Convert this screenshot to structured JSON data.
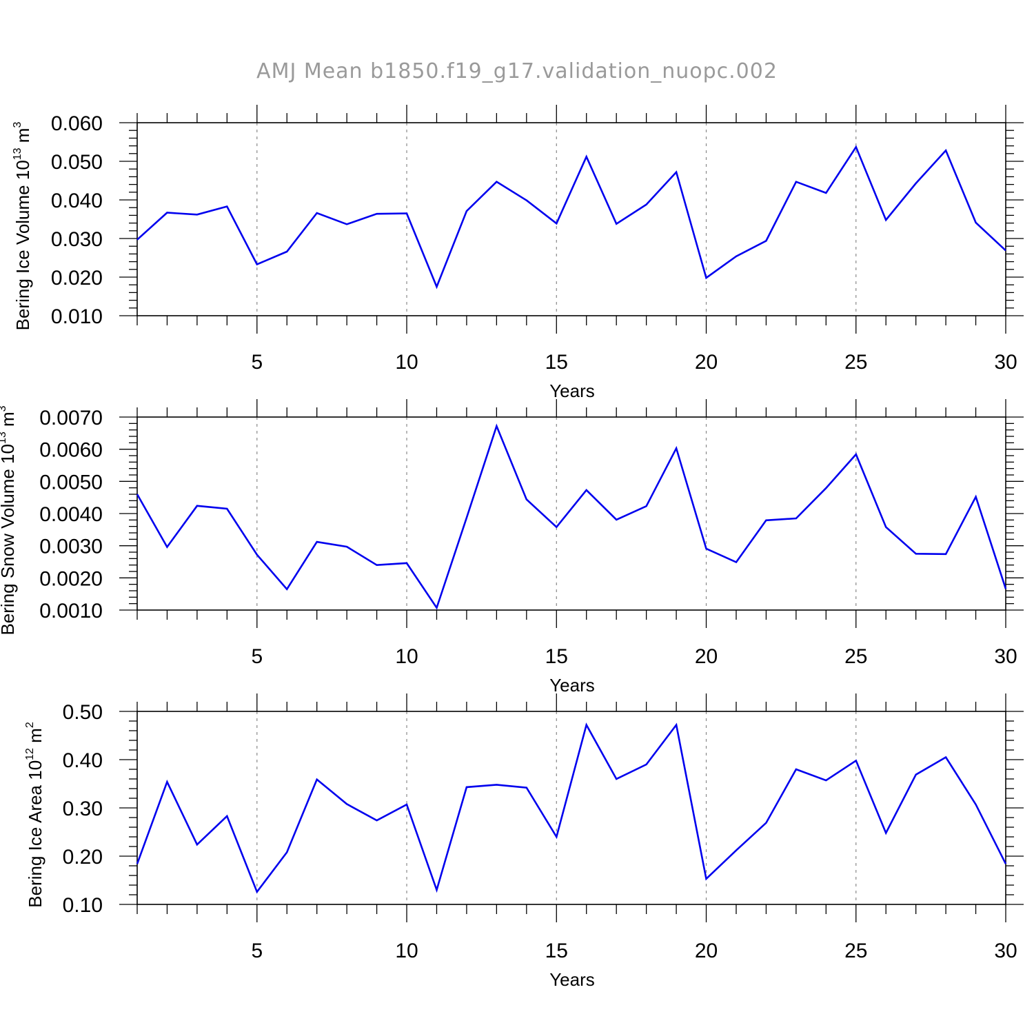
{
  "title": "AMJ Mean b1850.f19_g17.validation_nuopc.002",
  "chart_data": [
    {
      "type": "line",
      "title": "",
      "xlabel": "Years",
      "ylabel": "Bering Ice Volume 10",
      "ylabel_exp": "13",
      "ylabel_unit": "m",
      "ylabel_unit_exp": "3",
      "xlim": [
        1,
        30
      ],
      "ylim": [
        0.01,
        0.06
      ],
      "xticks": [
        5,
        10,
        15,
        20,
        25,
        30
      ],
      "yticks": [
        "0.010",
        "0.020",
        "0.030",
        "0.040",
        "0.050",
        "0.060"
      ],
      "ytick_values": [
        0.01,
        0.02,
        0.03,
        0.04,
        0.05,
        0.06
      ],
      "grid": "vertical dashed at major x ticks",
      "line_color": "#0000ee",
      "x": [
        1,
        2,
        3,
        4,
        5,
        6,
        7,
        8,
        9,
        10,
        11,
        12,
        13,
        14,
        15,
        16,
        17,
        18,
        19,
        20,
        21,
        22,
        23,
        24,
        25,
        26,
        27,
        28,
        29,
        30
      ],
      "values": [
        0.0297,
        0.0367,
        0.0362,
        0.0383,
        0.0233,
        0.0266,
        0.0366,
        0.0337,
        0.0364,
        0.0365,
        0.0175,
        0.0371,
        0.0447,
        0.0399,
        0.0339,
        0.0512,
        0.0338,
        0.0388,
        0.0472,
        0.0198,
        0.0254,
        0.0294,
        0.0447,
        0.0418,
        0.0537,
        0.0348,
        0.0443,
        0.0528,
        0.0341,
        0.0269
      ]
    },
    {
      "type": "line",
      "title": "",
      "xlabel": "Years",
      "ylabel": "Bering Snow Volume 10",
      "ylabel_exp": "13",
      "ylabel_unit": "m",
      "ylabel_unit_exp": "3",
      "xlim": [
        1,
        30
      ],
      "ylim": [
        0.001,
        0.007
      ],
      "xticks": [
        5,
        10,
        15,
        20,
        25,
        30
      ],
      "yticks": [
        "0.0010",
        "0.0020",
        "0.0030",
        "0.0040",
        "0.0050",
        "0.0060",
        "0.0070"
      ],
      "ytick_values": [
        0.001,
        0.002,
        0.003,
        0.004,
        0.005,
        0.006,
        0.007
      ],
      "grid": "vertical dashed at major x ticks",
      "line_color": "#0000ee",
      "x": [
        1,
        2,
        3,
        4,
        5,
        6,
        7,
        8,
        9,
        10,
        11,
        12,
        13,
        14,
        15,
        16,
        17,
        18,
        19,
        20,
        21,
        22,
        23,
        24,
        25,
        26,
        27,
        28,
        29,
        30
      ],
      "values": [
        0.0046,
        0.00296,
        0.00424,
        0.00415,
        0.00272,
        0.00165,
        0.00312,
        0.00297,
        0.0024,
        0.00246,
        0.00107,
        0.00387,
        0.00672,
        0.00444,
        0.00358,
        0.00473,
        0.00381,
        0.00423,
        0.00603,
        0.00291,
        0.00249,
        0.00379,
        0.00385,
        0.00479,
        0.00584,
        0.00358,
        0.00275,
        0.00274,
        0.00452,
        0.00166
      ]
    },
    {
      "type": "line",
      "title": "",
      "xlabel": "Years",
      "ylabel": "Bering Ice Area 10",
      "ylabel_exp": "12",
      "ylabel_unit": "m",
      "ylabel_unit_exp": "2",
      "xlim": [
        1,
        30
      ],
      "ylim": [
        0.1,
        0.5
      ],
      "xticks": [
        5,
        10,
        15,
        20,
        25,
        30
      ],
      "yticks": [
        "0.10",
        "0.20",
        "0.30",
        "0.40",
        "0.50"
      ],
      "ytick_values": [
        0.1,
        0.2,
        0.3,
        0.4,
        0.5
      ],
      "grid": "vertical dashed at major x ticks",
      "line_color": "#0000ee",
      "x": [
        1,
        2,
        3,
        4,
        5,
        6,
        7,
        8,
        9,
        10,
        11,
        12,
        13,
        14,
        15,
        16,
        17,
        18,
        19,
        20,
        21,
        22,
        23,
        24,
        25,
        26,
        27,
        28,
        29,
        30
      ],
      "values": [
        0.184,
        0.354,
        0.224,
        0.283,
        0.126,
        0.208,
        0.359,
        0.308,
        0.274,
        0.307,
        0.13,
        0.343,
        0.348,
        0.342,
        0.24,
        0.472,
        0.36,
        0.39,
        0.472,
        0.153,
        0.212,
        0.269,
        0.38,
        0.357,
        0.398,
        0.248,
        0.369,
        0.405,
        0.307,
        0.184
      ]
    }
  ]
}
